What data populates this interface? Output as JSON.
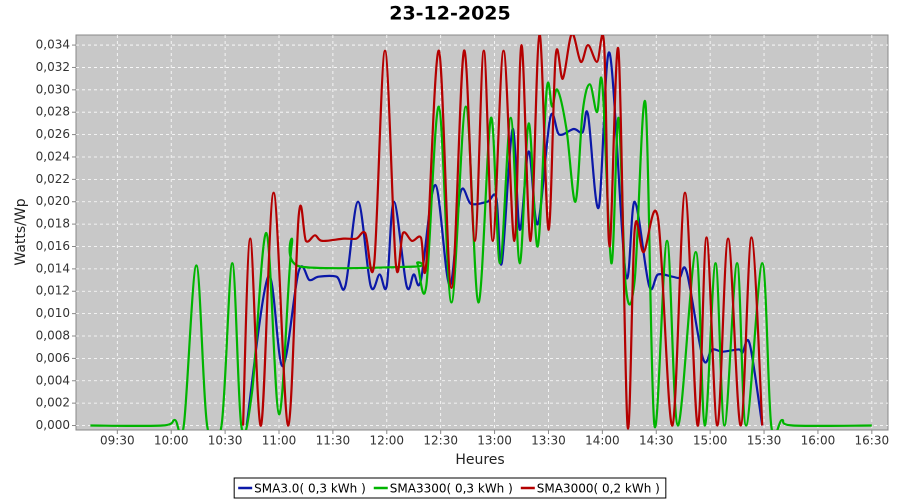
{
  "chart_data": {
    "type": "line",
    "title": "23-12-2025",
    "x_label": "Heures",
    "y_label": "Watts/Wp",
    "xlim": [
      "09:07",
      "16:39"
    ],
    "xticks": [
      "09:30",
      "10:00",
      "10:30",
      "11:00",
      "11:30",
      "12:00",
      "12:30",
      "13:00",
      "13:30",
      "14:00",
      "14:30",
      "15:00",
      "15:30",
      "16:00",
      "16:30"
    ],
    "ylim": [
      -0.0004,
      0.0349
    ],
    "yticks": [
      {
        "value": 0,
        "label": "0,000"
      },
      {
        "value": 0.002,
        "label": "0,002"
      },
      {
        "value": 0.004,
        "label": "0,004"
      },
      {
        "value": 0.006,
        "label": "0,006"
      },
      {
        "value": 0.008,
        "label": "0,008"
      },
      {
        "value": 0.01,
        "label": "0,010"
      },
      {
        "value": 0.012,
        "label": "0,012"
      },
      {
        "value": 0.014,
        "label": "0,014"
      },
      {
        "value": 0.016,
        "label": "0,016"
      },
      {
        "value": 0.018,
        "label": "0,018"
      },
      {
        "value": 0.02,
        "label": "0,020"
      },
      {
        "value": 0.022,
        "label": "0,022"
      },
      {
        "value": 0.024,
        "label": "0,024"
      },
      {
        "value": 0.026,
        "label": "0,026"
      },
      {
        "value": 0.028,
        "label": "0,028"
      },
      {
        "value": 0.03,
        "label": "0,030"
      },
      {
        "value": 0.032,
        "label": "0,032"
      },
      {
        "value": 0.034,
        "label": "0,034"
      }
    ],
    "grid": true,
    "series": [
      {
        "name": "SMA3.0( 0,3 kWh )",
        "color": "#0b18a8",
        "x": [
          "10:42",
          "10:54",
          "11:02",
          "11:11",
          "11:17",
          "11:22",
          "11:32",
          "11:37",
          "11:44",
          "11:51",
          "11:56",
          "12:00",
          "12:04",
          "12:11",
          "12:15",
          "12:19",
          "12:27",
          "12:35",
          "12:41",
          "12:47",
          "12:56",
          "13:01",
          "13:04",
          "13:10",
          "13:14",
          "13:19",
          "13:24",
          "13:31",
          "13:36",
          "13:44",
          "13:49",
          "13:52",
          "13:58",
          "14:04",
          "14:13",
          "14:18",
          "14:26",
          "14:31",
          "14:39",
          "14:43",
          "14:47",
          "14:56",
          "15:01",
          "15:07",
          "15:16",
          "15:18",
          "15:22",
          "15:29"
        ],
        "values": [
          0,
          0.0133,
          0.0053,
          0.0138,
          0.013,
          0.0133,
          0.0133,
          0.0125,
          0.02,
          0.0125,
          0.0135,
          0.0125,
          0.02,
          0.0125,
          0.0135,
          0.013,
          0.0215,
          0.0125,
          0.0208,
          0.0198,
          0.02,
          0.0203,
          0.0145,
          0.0265,
          0.0175,
          0.0245,
          0.018,
          0.0275,
          0.026,
          0.0265,
          0.0262,
          0.0278,
          0.0195,
          0.0333,
          0.0135,
          0.02,
          0.0125,
          0.0135,
          0.0133,
          0.0132,
          0.0137,
          0.006,
          0.0068,
          0.0066,
          0.0068,
          0.0065,
          0.0073,
          0
        ]
      },
      {
        "name": "SMA3300( 0,3 kWh )",
        "color": "#00b400",
        "x": [
          "09:15",
          "09:55",
          "10:02",
          "10:07",
          "10:14",
          "10:20",
          "10:28",
          "10:34",
          "10:39",
          "10:45",
          "10:53",
          "11:00",
          "11:07",
          "11:12",
          "12:15",
          "12:17",
          "12:22",
          "12:29",
          "12:36",
          "12:44",
          "12:51",
          "12:58",
          "13:03",
          "13:09",
          "13:14",
          "13:19",
          "13:24",
          "13:29",
          "13:32",
          "13:35",
          "13:40",
          "13:45",
          "13:49",
          "13:53",
          "13:57",
          "14:00",
          "14:05",
          "14:09",
          "14:13",
          "14:18",
          "14:24",
          "14:29",
          "14:36",
          "14:42",
          "14:52",
          "14:57",
          "15:03",
          "15:08",
          "15:15",
          "15:20",
          "15:29",
          "15:34",
          "15:40",
          "15:46",
          "16:30"
        ],
        "values": [
          0,
          0,
          0.0005,
          0,
          0.0143,
          0,
          0,
          0.0145,
          0,
          0.003,
          0.0172,
          0.001,
          0.016,
          0.0142,
          0.0142,
          0.0145,
          0.0125,
          0.0285,
          0.011,
          0.0285,
          0.011,
          0.0275,
          0.0145,
          0.0275,
          0.0145,
          0.027,
          0.016,
          0.03,
          0.0285,
          0.03,
          0.0265,
          0.02,
          0.028,
          0.0305,
          0.028,
          0.0305,
          0.0145,
          0.0275,
          0.0125,
          0.013,
          0.0288,
          0,
          0.0165,
          0,
          0.0155,
          0,
          0.0145,
          0,
          0.0145,
          0,
          0.0145,
          0,
          0.0005,
          0,
          0
        ]
      },
      {
        "name": "SMA3000( 0,2 kWh )",
        "color": "#b40000",
        "x": [
          "10:40",
          "10:44",
          "10:50",
          "10:57",
          "11:05",
          "11:11",
          "11:15",
          "11:20",
          "11:24",
          "11:36",
          "11:43",
          "11:48",
          "11:53",
          "11:59",
          "12:05",
          "12:09",
          "12:14",
          "12:19",
          "12:22",
          "12:29",
          "12:36",
          "12:43",
          "12:49",
          "12:54",
          "12:59",
          "13:05",
          "13:11",
          "13:15",
          "13:20",
          "13:25",
          "13:30",
          "13:34",
          "13:38",
          "13:43",
          "13:48",
          "13:52",
          "13:57",
          "14:01",
          "14:04",
          "14:09",
          "14:14",
          "14:18",
          "14:23",
          "14:31",
          "14:39",
          "14:46",
          "14:53",
          "14:58",
          "15:04",
          "15:10",
          "15:17",
          "15:23",
          "15:29"
        ],
        "values": [
          0,
          0.0167,
          0,
          0.0208,
          0,
          0.0188,
          0.0165,
          0.017,
          0.0165,
          0.0167,
          0.0167,
          0.0172,
          0.0145,
          0.0335,
          0.0145,
          0.0172,
          0.0165,
          0.0168,
          0.0145,
          0.0335,
          0.0123,
          0.0335,
          0.0165,
          0.0335,
          0.0165,
          0.0335,
          0.0165,
          0.034,
          0.0165,
          0.035,
          0.0175,
          0.033,
          0.031,
          0.035,
          0.0325,
          0.034,
          0.0325,
          0.034,
          0.016,
          0.0335,
          0,
          0.0175,
          0.0155,
          0.0185,
          0,
          0.0208,
          0,
          0.0168,
          0,
          0.0167,
          0,
          0.0168,
          0
        ]
      }
    ],
    "legend_position": "bottom"
  }
}
